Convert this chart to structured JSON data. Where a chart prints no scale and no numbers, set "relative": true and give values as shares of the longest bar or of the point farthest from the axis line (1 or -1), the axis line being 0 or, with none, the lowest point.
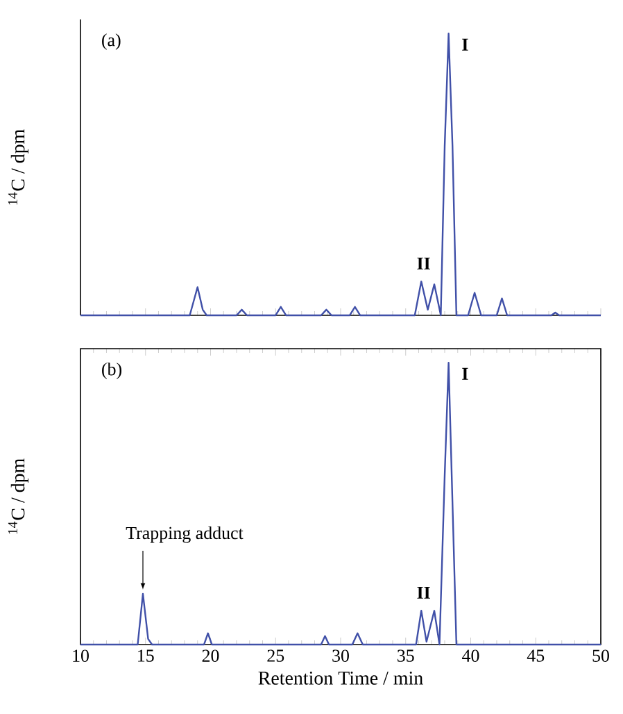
{
  "chart_data": [
    {
      "type": "line",
      "title": "(a)",
      "ylabel": "$^{14}$C / dpm",
      "relative": true,
      "xlim": [
        10,
        50
      ],
      "xticks": [
        10,
        15,
        20,
        25,
        30,
        35,
        40,
        45,
        50
      ],
      "tick_labels": false,
      "color": "#4050a8",
      "x": [
        10,
        18.4,
        18.7,
        19.0,
        19.4,
        19.7,
        22.0,
        22.4,
        22.8,
        25.0,
        25.4,
        25.8,
        28.5,
        28.9,
        29.3,
        30.7,
        31.1,
        31.5,
        35.7,
        36.2,
        36.7,
        37.2,
        37.7,
        38.0,
        38.3,
        38.6,
        38.9,
        39.8,
        40.3,
        40.8,
        42.0,
        42.4,
        42.8,
        46.2,
        46.5,
        46.8,
        50
      ],
      "values": [
        0,
        0,
        0.05,
        0.1,
        0.02,
        0,
        0,
        0.02,
        0,
        0,
        0.03,
        0,
        0,
        0.02,
        0,
        0,
        0.03,
        0,
        0,
        0.12,
        0.02,
        0.11,
        0,
        0.6,
        1.0,
        0.6,
        0,
        0,
        0.08,
        0,
        0,
        0.06,
        0,
        0,
        0.01,
        0,
        0
      ],
      "annotations": [
        {
          "text": "I",
          "x": 38.3,
          "y": 1.0
        },
        {
          "text": "II",
          "x": 36.7,
          "y": 0.12
        }
      ]
    },
    {
      "type": "line",
      "title": "(b)",
      "ylabel": "$^{14}$C / dpm",
      "xlabel": "Retention Time / min",
      "relative": true,
      "xlim": [
        10,
        50
      ],
      "xticks": [
        10,
        15,
        20,
        25,
        30,
        35,
        40,
        45,
        50
      ],
      "tick_labels": "x",
      "color": "#4050a8",
      "x": [
        10,
        14.4,
        14.8,
        15.2,
        15.5,
        19.5,
        19.8,
        20.1,
        28.5,
        28.8,
        29.1,
        30.9,
        31.3,
        31.7,
        35.8,
        36.2,
        36.6,
        37.2,
        37.6,
        38.0,
        38.3,
        38.6,
        38.9,
        50
      ],
      "values": [
        0,
        0,
        0.18,
        0.02,
        0,
        0,
        0.04,
        0,
        0,
        0.03,
        0,
        0,
        0.04,
        0,
        0,
        0.12,
        0.01,
        0.12,
        0,
        0.6,
        1.0,
        0.5,
        0,
        0
      ],
      "annotations": [
        {
          "text": "I",
          "x": 38.3,
          "y": 1.0
        },
        {
          "text": "II",
          "x": 36.7,
          "y": 0.12
        },
        {
          "text": "Trapping adduct",
          "x": 14.8,
          "y": 0.18
        }
      ]
    }
  ]
}
